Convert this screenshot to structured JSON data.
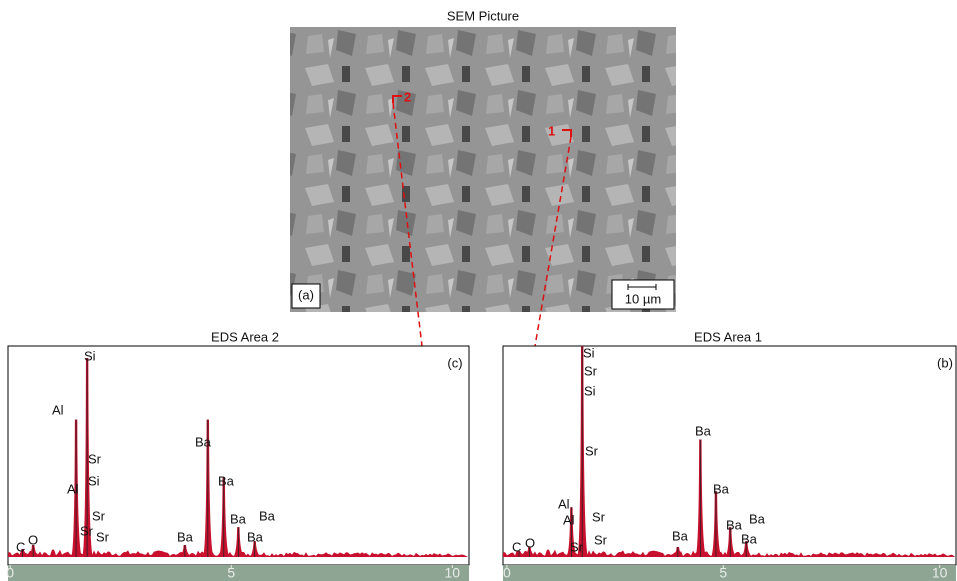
{
  "sem": {
    "title": "SEM Picture",
    "panel_label": "(a)",
    "scale_label": "10 µm",
    "markers": [
      "2",
      "1"
    ]
  },
  "chart_data": [
    {
      "type": "spectrum",
      "title": "EDS Area 2",
      "panel_label": "(c)",
      "x": [
        0.28,
        0.52,
        1.49,
        1.74,
        3.95,
        4.47,
        4.83,
        5.16,
        5.53
      ],
      "values": [
        4,
        6,
        69,
        100,
        6,
        69,
        40,
        15,
        8
      ],
      "xlim": [
        -0.05,
        10.4
      ],
      "ylim": [
        0,
        106
      ],
      "xticks": [
        0,
        5,
        10
      ],
      "color": "#c8102e",
      "annotations": [
        "C",
        "O",
        "Al",
        "Si",
        "Sr",
        "Si",
        "Al",
        "Sr",
        "Sr",
        "Sr",
        "Ba",
        "Ba",
        "Ba",
        "Ba",
        "Ba",
        "Ba"
      ]
    },
    {
      "type": "spectrum",
      "title": "EDS Area 1",
      "panel_label": "(b)",
      "x": [
        0.28,
        0.52,
        1.49,
        1.74,
        3.95,
        4.47,
        4.83,
        5.16,
        5.53
      ],
      "values": [
        3,
        5,
        25,
        106,
        5,
        59,
        33,
        15,
        8
      ],
      "xlim": [
        -0.09,
        10.4
      ],
      "ylim": [
        0,
        106
      ],
      "xticks": [
        0,
        5,
        10
      ],
      "color": "#c8102e",
      "annotations": [
        "C",
        "O",
        "Si",
        "Sr",
        "Si",
        "Sr",
        "Al",
        "Al",
        "Sr",
        "Sr",
        "Sr",
        "Ba",
        "Ba",
        "Ba",
        "Ba",
        "Ba",
        "Ba"
      ]
    }
  ]
}
